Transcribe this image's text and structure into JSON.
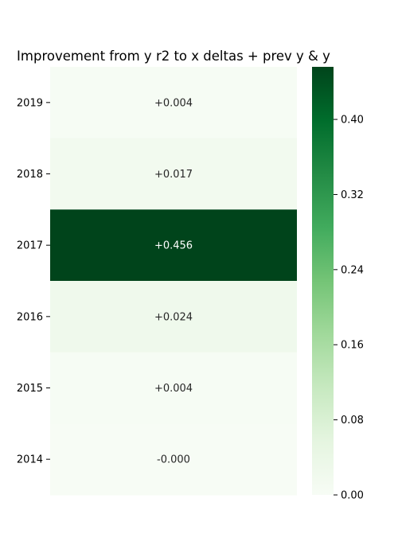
{
  "chart_data": {
    "type": "heatmap",
    "title": "Improvement from y r2 to x deltas + prev y & y",
    "xlabel": "",
    "ylabel": "",
    "rows": [
      "2019",
      "2018",
      "2017",
      "2016",
      "2015",
      "2014"
    ],
    "values": [
      0.004,
      0.017,
      0.456,
      0.024,
      0.004,
      -0.0
    ],
    "cell_labels": [
      "+0.004",
      "+0.017",
      "+0.456",
      "+0.024",
      "+0.004",
      "-0.000"
    ],
    "colorbar": {
      "vmin": 0.0,
      "vmax": 0.456,
      "ticks": [
        0.0,
        0.08,
        0.16,
        0.24,
        0.32,
        0.4
      ],
      "tick_labels": [
        "0.00",
        "0.08",
        "0.16",
        "0.24",
        "0.32",
        "0.40"
      ],
      "colormap": "Greens",
      "colors": [
        "#f7fcf5",
        "#e5f5e0",
        "#c7e9c0",
        "#a1d99b",
        "#74c476",
        "#41ab5d",
        "#238b45",
        "#006d2c",
        "#00441b"
      ]
    },
    "grid": false
  }
}
